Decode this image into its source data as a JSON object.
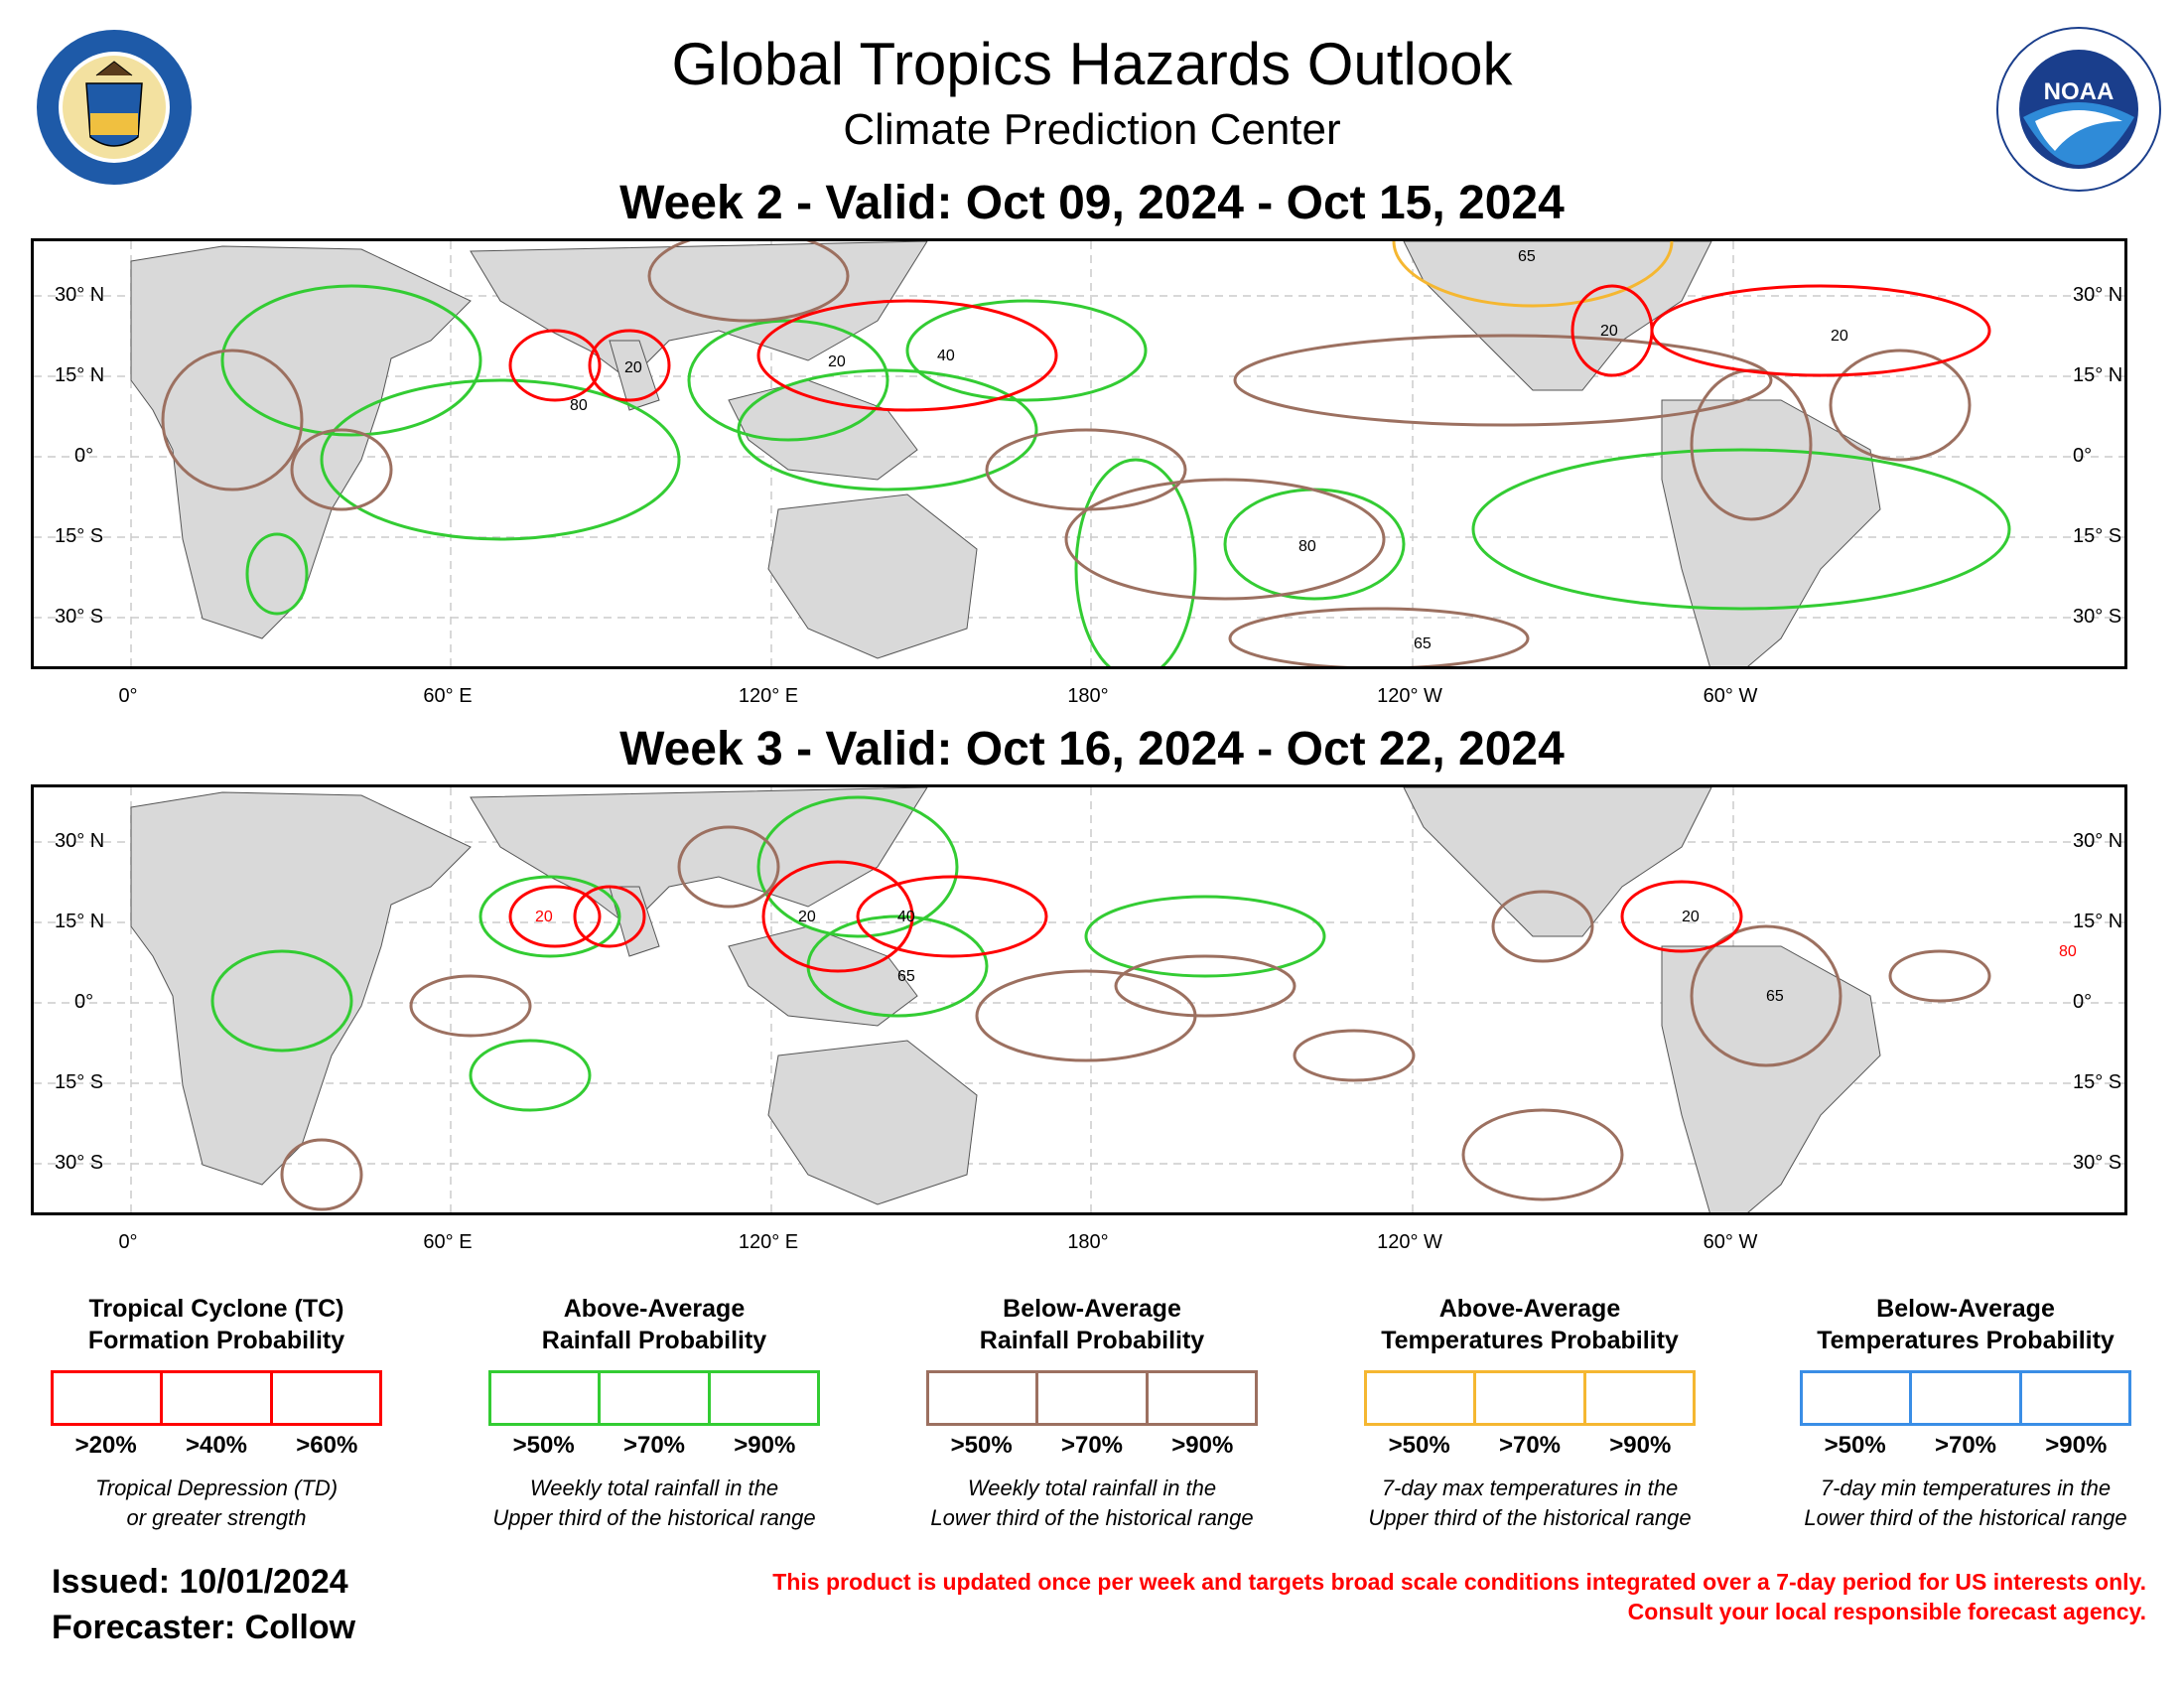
{
  "header": {
    "title": "Global Tropics Hazards Outlook",
    "subtitle": "Climate Prediction Center"
  },
  "logos": {
    "commerce_seal": "department-of-commerce-seal",
    "noaa_logo": "noaa-logo"
  },
  "maps": [
    {
      "title": "Week 2 - Valid: Oct 09, 2024 - Oct 15, 2024",
      "contours": [
        {
          "type": "tc",
          "label": "20",
          "region": "Arabian Sea / Bay of Bengal"
        },
        {
          "type": "tc",
          "label": "20",
          "region": "Philippine Sea"
        },
        {
          "type": "tc",
          "label": "40",
          "region": "West Pacific"
        },
        {
          "type": "tc",
          "label": "20",
          "region": "Gulf of Mexico"
        },
        {
          "type": "tc",
          "label": "20",
          "region": "Central Atlantic"
        },
        {
          "type": "above_rain",
          "label": "80",
          "region": "India"
        },
        {
          "type": "above_rain",
          "label": "80",
          "region": "South Pacific"
        },
        {
          "type": "below_rain",
          "label": "65",
          "region": "East Pacific"
        },
        {
          "type": "above_temp",
          "label": "65",
          "region": "Southwest US"
        }
      ]
    },
    {
      "title": "Week 3 - Valid: Oct 16, 2024 - Oct 22, 2024",
      "contours": [
        {
          "type": "tc",
          "label": "20",
          "region": "Arabian Sea"
        },
        {
          "type": "tc",
          "label": "20",
          "region": "Philippines"
        },
        {
          "type": "tc",
          "label": "40",
          "region": "West Pacific"
        },
        {
          "type": "tc",
          "label": "20",
          "region": "Caribbean"
        },
        {
          "type": "tc",
          "label": "80",
          "region": "Africa / West Africa"
        },
        {
          "type": "above_rain",
          "label": "65",
          "region": "West Pacific"
        },
        {
          "type": "below_rain",
          "label": "65",
          "region": "Mexico / South America"
        }
      ]
    }
  ],
  "axes": {
    "lat_left": [
      "30° N",
      "15° N",
      "0°",
      "15° S",
      "30° S"
    ],
    "lat_right": [
      "30° N",
      "15° N",
      "0°",
      "15° S",
      "30° S"
    ],
    "lon": [
      "0°",
      "60° E",
      "120° E",
      "180°",
      "120° W",
      "60° W"
    ]
  },
  "legend": [
    {
      "title1": "Tropical Cyclone (TC)",
      "title2": "Formation Probability",
      "color": "#ff0000",
      "ticks": [
        ">20%",
        ">40%",
        ">60%"
      ],
      "desc1": "Tropical Depression (TD)",
      "desc2": "or greater strength"
    },
    {
      "title1": "Above-Average",
      "title2": "Rainfall Probability",
      "color": "#33cc33",
      "ticks": [
        ">50%",
        ">70%",
        ">90%"
      ],
      "desc1": "Weekly total rainfall in the",
      "desc2": "Upper third of the historical range"
    },
    {
      "title1": "Below-Average",
      "title2": "Rainfall Probability",
      "color": "#9c7060",
      "ticks": [
        ">50%",
        ">70%",
        ">90%"
      ],
      "desc1": "Weekly total rainfall in the",
      "desc2": "Lower third of the historical range"
    },
    {
      "title1": "Above-Average",
      "title2": "Temperatures Probability",
      "color": "#f5b731",
      "ticks": [
        ">50%",
        ">70%",
        ">90%"
      ],
      "desc1": "7-day max temperatures in the",
      "desc2": "Upper third of the historical range"
    },
    {
      "title1": "Below-Average",
      "title2": "Temperatures Probability",
      "color": "#3a8ee6",
      "ticks": [
        ">50%",
        ">70%",
        ">90%"
      ],
      "desc1": "7-day min temperatures in the",
      "desc2": "Lower third of the historical range"
    }
  ],
  "footer": {
    "issued": "Issued: 10/01/2024",
    "forecaster": "Forecaster: Collow",
    "disclaimer1": "This product is updated once per week and targets broad scale conditions integrated over a 7-day period for US interests only.",
    "disclaimer2": "Consult your local responsible forecast agency."
  },
  "colors": {
    "tc": "#ff0000",
    "above_rain": "#33cc33",
    "below_rain": "#9c7060",
    "above_temp": "#f5b731",
    "below_temp": "#3a8ee6",
    "land": "#d9d9d9"
  }
}
